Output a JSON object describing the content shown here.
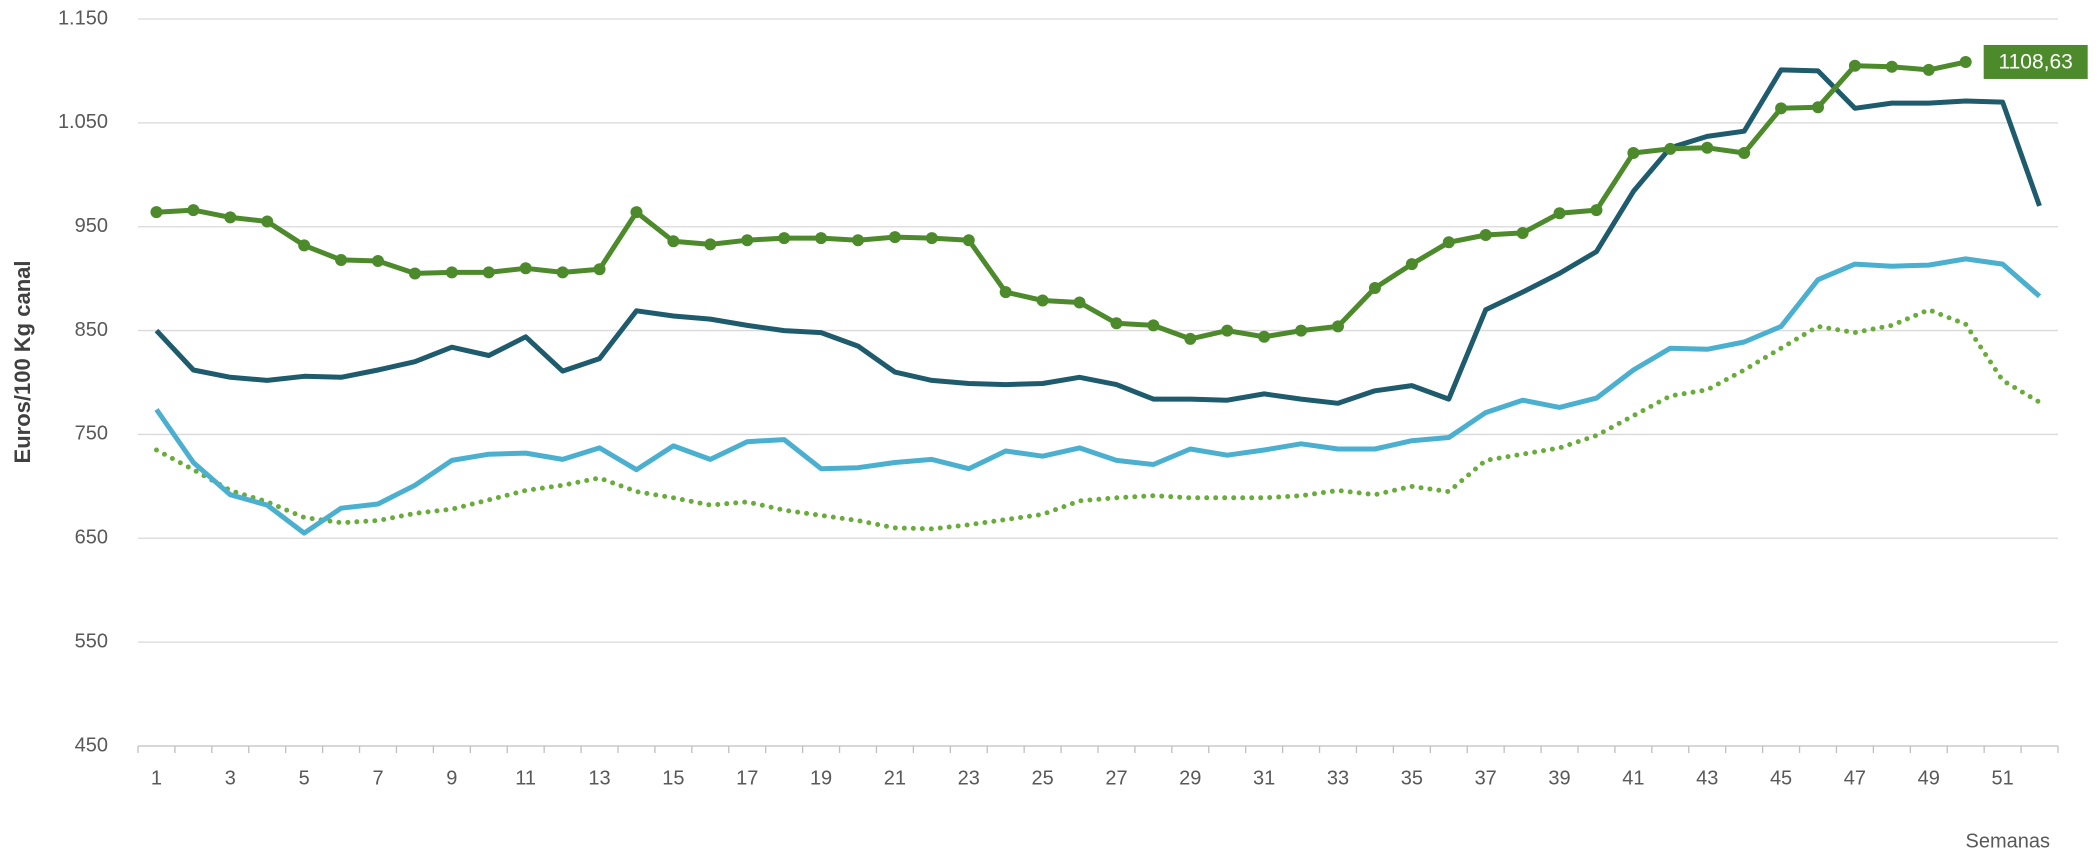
{
  "chart_data": {
    "type": "line",
    "y_label": "Euros/100 Kg canal",
    "x_label": "Semanas",
    "categories": [
      "1",
      null,
      "3",
      null,
      "5",
      null,
      "7",
      null,
      "9",
      null,
      "11",
      null,
      "13",
      null,
      "15",
      null,
      "17",
      null,
      "19",
      null,
      "21",
      null,
      "23",
      null,
      "25",
      null,
      "27",
      null,
      "29",
      null,
      "31",
      null,
      "33",
      null,
      "35",
      null,
      "37",
      null,
      "39",
      null,
      "41",
      null,
      "43",
      null,
      "45",
      null,
      "47",
      null,
      "49",
      null,
      "51",
      null
    ],
    "ylim": [
      450,
      1150
    ],
    "yticks": [
      450,
      550,
      650,
      750,
      850,
      950,
      {
        "value": 1050,
        "label": "1.050"
      },
      {
        "value": 1150,
        "label": "1.150"
      }
    ],
    "grid": true,
    "series": [
      {
        "color": "#4d8a2c",
        "marker": "circle",
        "dash": "solid",
        "values": [
          964,
          966,
          959,
          955,
          932,
          918,
          917,
          905,
          906,
          906,
          910,
          906,
          909,
          964,
          936,
          933,
          937,
          939,
          939,
          937,
          940,
          939,
          937,
          887,
          879,
          877,
          857,
          855,
          842,
          850,
          844,
          850,
          854,
          891,
          914,
          935,
          942,
          944,
          963,
          966,
          1021,
          1025,
          1026,
          1021,
          1064,
          1065,
          1105,
          1104,
          1101,
          1108.63,
          null,
          null
        ],
        "value_labels": [
          null,
          null,
          null,
          null,
          null,
          null,
          null,
          null,
          null,
          null,
          null,
          null,
          null,
          null,
          null,
          null,
          null,
          null,
          null,
          null,
          null,
          null,
          null,
          null,
          null,
          null,
          null,
          null,
          null,
          null,
          null,
          null,
          null,
          null,
          null,
          null,
          null,
          null,
          null,
          null,
          null,
          null,
          null,
          null,
          null,
          null,
          null,
          null,
          null,
          "1108,63",
          null,
          null
        ]
      },
      {
        "color": "#1e5b6c",
        "dash": "solid",
        "values": [
          850,
          812,
          805,
          802,
          806,
          805,
          812,
          820,
          834,
          826,
          844,
          811,
          823,
          869,
          864,
          861,
          855,
          850,
          848,
          835,
          810,
          802,
          799,
          798,
          799,
          805,
          798,
          784,
          784,
          783,
          789,
          784,
          780,
          792,
          797,
          784,
          870,
          887,
          905,
          926,
          984,
          1026,
          1037,
          1042,
          1101,
          1100,
          1064,
          1069,
          1069,
          1071,
          1070,
          970
        ]
      },
      {
        "color": "#4bb0cf",
        "dash": "solid",
        "values": [
          774,
          723,
          692,
          682,
          655,
          679,
          683,
          701,
          725,
          731,
          732,
          726,
          737,
          716,
          739,
          726,
          743,
          745,
          717,
          718,
          723,
          726,
          717,
          734,
          729,
          737,
          725,
          721,
          736,
          730,
          735,
          741,
          736,
          736,
          744,
          747,
          771,
          783,
          776,
          785,
          812,
          833,
          832,
          839,
          854,
          899,
          914,
          912,
          913,
          919,
          914,
          883
        ]
      },
      {
        "color": "#6aac3c",
        "dash": "dotted",
        "values": [
          735,
          716,
          696,
          685,
          670,
          665,
          667,
          674,
          678,
          687,
          696,
          701,
          708,
          695,
          689,
          682,
          685,
          677,
          672,
          667,
          660,
          659,
          663,
          668,
          673,
          686,
          689,
          691,
          689,
          689,
          689,
          691,
          696,
          692,
          700,
          695,
          725,
          731,
          737,
          749,
          768,
          787,
          793,
          812,
          833,
          854,
          848,
          855,
          870,
          856,
          802,
          781
        ]
      }
    ]
  }
}
